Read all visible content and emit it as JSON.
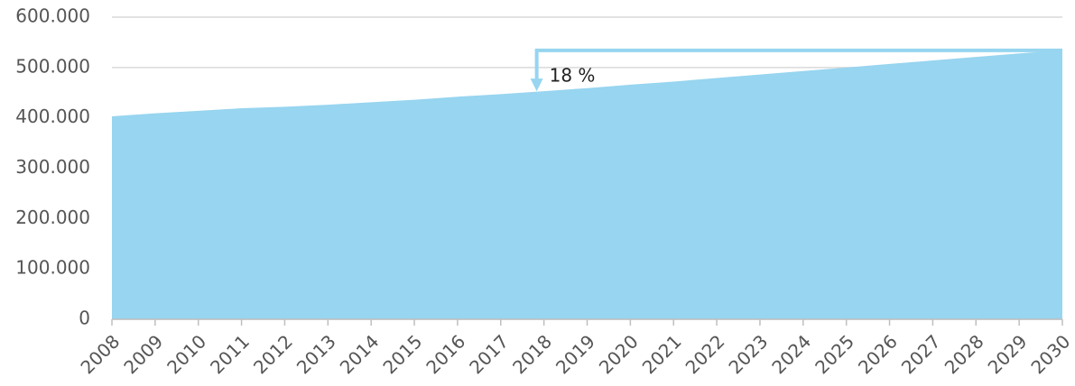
{
  "chart_data": {
    "type": "area",
    "categories": [
      "2008",
      "2009",
      "2010",
      "2011",
      "2012",
      "2013",
      "2014",
      "2015",
      "2016",
      "2017",
      "2018",
      "2019",
      "2020",
      "2021",
      "2022",
      "2023",
      "2024",
      "2025",
      "2026",
      "2027",
      "2028",
      "2029",
      "2030"
    ],
    "values": [
      403000,
      409000,
      414000,
      419000,
      422000,
      426000,
      431000,
      436000,
      442000,
      447000,
      453000,
      459000,
      466000,
      472000,
      479000,
      486000,
      493000,
      500000,
      507000,
      514000,
      521000,
      528000,
      534000
    ],
    "color": "#97d5f0",
    "ylim": [
      0,
      600000
    ],
    "yticks": [
      0,
      {
        "value": 100000,
        "label": "100.000"
      },
      {
        "value": 200000,
        "label": "200.000"
      },
      {
        "value": 300000,
        "label": "300.000"
      },
      {
        "value": 400000,
        "label": "400.000"
      },
      {
        "value": 500000,
        "label": "500.000"
      },
      {
        "value": 600000,
        "label": "600.000"
      }
    ],
    "grid": true,
    "annotation": "18 %"
  }
}
